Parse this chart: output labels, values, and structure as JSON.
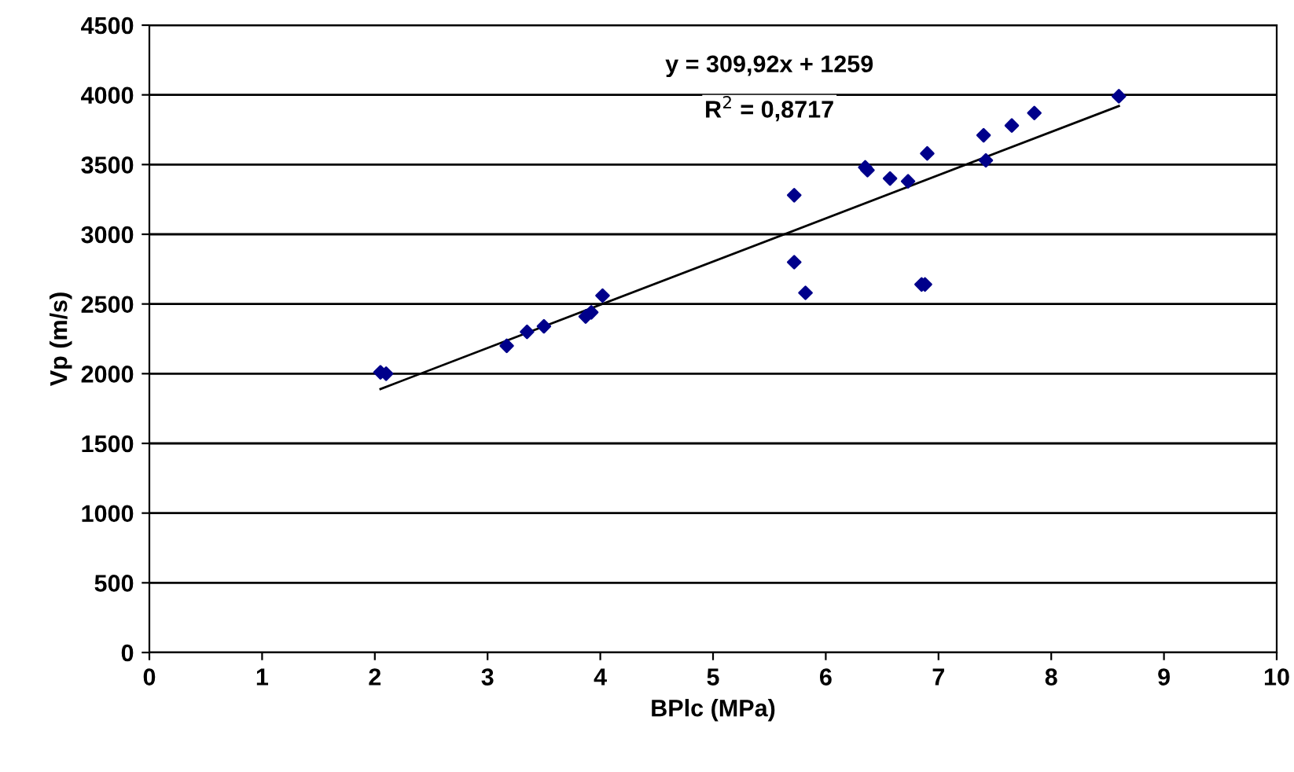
{
  "chart_data": {
    "type": "scatter",
    "xlabel": "BPlc (MPa)",
    "ylabel": "Vp (m/s)",
    "xlim": [
      0,
      10
    ],
    "xticks": [
      0,
      1,
      2,
      3,
      4,
      5,
      6,
      7,
      8,
      9,
      10
    ],
    "ylim": [
      0,
      4500
    ],
    "yticks": [
      0,
      500,
      1000,
      1500,
      2000,
      2500,
      3000,
      3500,
      4000,
      4500
    ],
    "grid": "y",
    "legend": false,
    "annotations": [
      "y = 309,92x + 1259",
      "R$^{2}$ = 0,8717"
    ],
    "series": [
      {
        "marker": "diamond",
        "color": "#00008b",
        "x": [
          2.05,
          2.1,
          3.17,
          3.35,
          3.5,
          3.87,
          3.92,
          4.02,
          5.72,
          5.72,
          5.82,
          6.35,
          6.37,
          6.57,
          6.73,
          6.9,
          6.85,
          6.88,
          7.4,
          7.42,
          7.65,
          7.85,
          8.6
        ],
        "values": [
          2010,
          2000,
          2200,
          2300,
          2340,
          2410,
          2440,
          2560,
          3280,
          2800,
          2580,
          3480,
          3460,
          3400,
          3380,
          3580,
          2640,
          2640,
          3710,
          3530,
          3780,
          3870,
          3990
        ]
      },
      {
        "type": "line",
        "marker": "none",
        "color": "#000000",
        "x": [
          2.05,
          8.6
        ],
        "values": [
          1890,
          3920
        ]
      }
    ]
  }
}
